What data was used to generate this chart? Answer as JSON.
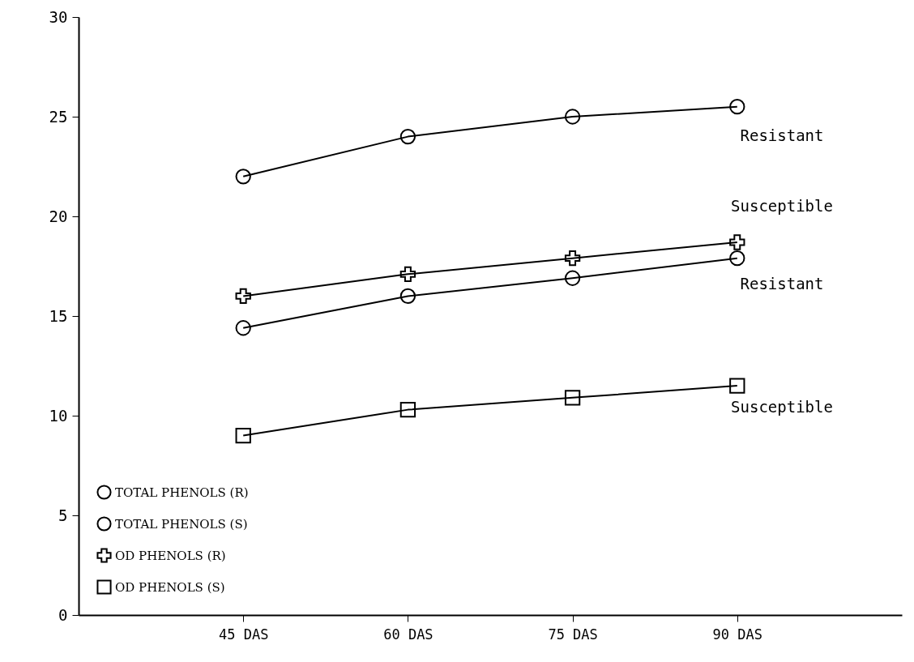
{
  "chart_data": {
    "type": "line",
    "categories": [
      "45 DAS",
      "60 DAS",
      "75 DAS",
      "90 DAS"
    ],
    "series": [
      {
        "name": "TOTAL PHENOLS (R)",
        "color": "#000000",
        "marker": "circle",
        "values": [
          22.0,
          24.0,
          25.0,
          25.5
        ]
      },
      {
        "name": "TOTAL PHENOLS (S)",
        "color": "#000000",
        "marker": "circle",
        "values": [
          14.4,
          16.0,
          16.9,
          17.9
        ]
      },
      {
        "name": "OD PHENOLS (R)",
        "color": "#000000",
        "marker": "cross",
        "values": [
          16.0,
          17.1,
          17.9,
          18.7
        ]
      },
      {
        "name": "OD PHENOLS (S)",
        "color": "#000000",
        "marker": "square",
        "values": [
          9.0,
          10.3,
          10.9,
          11.5
        ]
      }
    ],
    "ylim": [
      0,
      30
    ],
    "yticks": [
      0,
      5,
      10,
      15,
      20,
      25,
      30
    ],
    "grid": false,
    "legend": "bottom left",
    "line_style": "solid",
    "annotations": [
      "Resistant",
      "Susceptible",
      "Resistant",
      "Susceptible"
    ]
  }
}
